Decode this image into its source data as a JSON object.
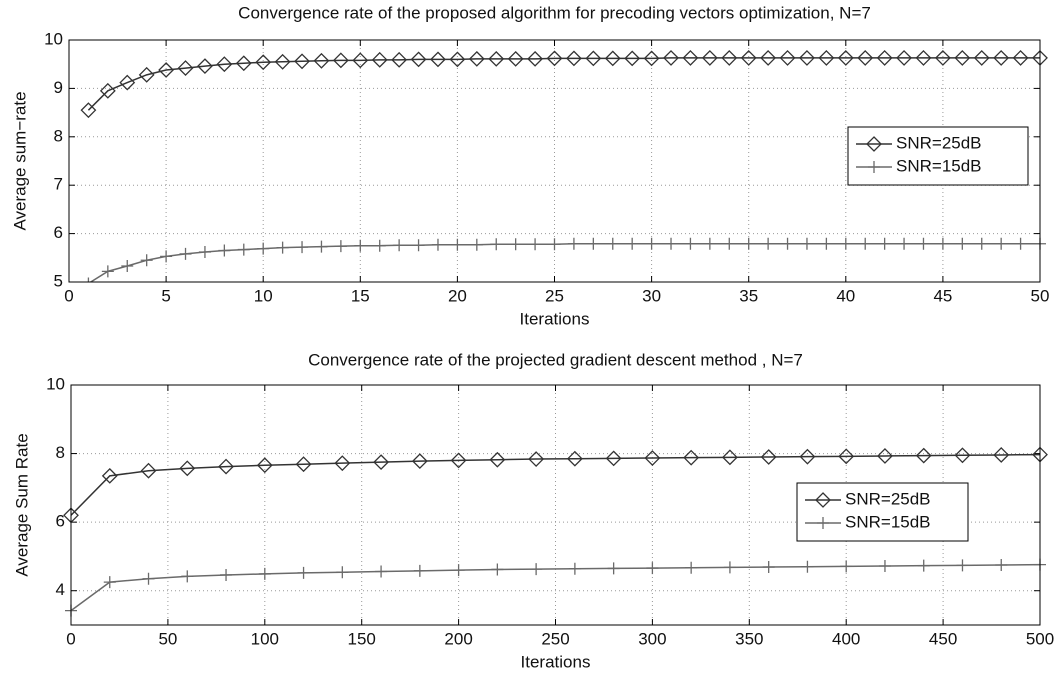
{
  "chart_data": [
    {
      "type": "line",
      "title": "Convergence rate of the proposed algorithm for precoding vectors optimization, N=7",
      "x_label": "Iterations",
      "y_label": "Average sum−rate",
      "x": [
        1,
        2,
        3,
        4,
        5,
        6,
        7,
        8,
        9,
        10,
        11,
        12,
        13,
        14,
        15,
        16,
        17,
        18,
        19,
        20,
        21,
        22,
        23,
        24,
        25,
        26,
        27,
        28,
        29,
        30,
        31,
        32,
        33,
        34,
        35,
        36,
        37,
        38,
        39,
        40,
        41,
        42,
        43,
        44,
        45,
        46,
        47,
        48,
        49,
        50
      ],
      "series": [
        {
          "name": "SNR=25dB",
          "color": "#333333",
          "marker": "diamond",
          "values": [
            8.55,
            8.95,
            9.12,
            9.28,
            9.38,
            9.42,
            9.46,
            9.5,
            9.52,
            9.54,
            9.55,
            9.56,
            9.57,
            9.58,
            9.58,
            9.59,
            9.59,
            9.6,
            9.6,
            9.6,
            9.61,
            9.61,
            9.61,
            9.61,
            9.62,
            9.62,
            9.62,
            9.62,
            9.62,
            9.62,
            9.63,
            9.63,
            9.63,
            9.63,
            9.63,
            9.63,
            9.63,
            9.63,
            9.63,
            9.63,
            9.63,
            9.63,
            9.63,
            9.63,
            9.63,
            9.63,
            9.63,
            9.63,
            9.63,
            9.63
          ]
        },
        {
          "name": "SNR=15dB",
          "color": "#6a6a6a",
          "marker": "plus",
          "values": [
            4.97,
            5.22,
            5.33,
            5.45,
            5.53,
            5.58,
            5.62,
            5.65,
            5.67,
            5.69,
            5.71,
            5.72,
            5.73,
            5.74,
            5.75,
            5.75,
            5.76,
            5.76,
            5.77,
            5.77,
            5.77,
            5.78,
            5.78,
            5.78,
            5.78,
            5.79,
            5.79,
            5.79,
            5.79,
            5.79,
            5.79,
            5.79,
            5.79,
            5.79,
            5.79,
            5.79,
            5.79,
            5.79,
            5.79,
            5.79,
            5.79,
            5.79,
            5.79,
            5.79,
            5.79,
            5.79,
            5.79,
            5.79,
            5.79,
            5.79
          ]
        }
      ],
      "xlim": [
        0,
        50
      ],
      "xticks": [
        0,
        5,
        10,
        15,
        20,
        25,
        30,
        35,
        40,
        45,
        50
      ],
      "ylim": [
        5,
        10
      ],
      "yticks": [
        5,
        6,
        7,
        8,
        9,
        10
      ],
      "grid": true,
      "legend": "right"
    },
    {
      "type": "line",
      "title": "Convergence rate of the projected gradient descent method , N=7",
      "x_label": "Iterations",
      "y_label": "Average Sum Rate",
      "x": [
        0,
        20,
        40,
        60,
        80,
        100,
        120,
        140,
        160,
        180,
        200,
        220,
        240,
        260,
        280,
        300,
        320,
        340,
        360,
        380,
        400,
        420,
        440,
        460,
        480,
        500
      ],
      "series": [
        {
          "name": "SNR=25dB",
          "color": "#333333",
          "marker": "diamond",
          "values": [
            6.2,
            7.35,
            7.5,
            7.57,
            7.62,
            7.66,
            7.69,
            7.72,
            7.75,
            7.78,
            7.8,
            7.82,
            7.84,
            7.85,
            7.86,
            7.87,
            7.88,
            7.89,
            7.9,
            7.91,
            7.92,
            7.93,
            7.94,
            7.95,
            7.96,
            7.97
          ]
        },
        {
          "name": "SNR=15dB",
          "color": "#6a6a6a",
          "marker": "plus",
          "values": [
            3.42,
            4.25,
            4.35,
            4.42,
            4.46,
            4.49,
            4.52,
            4.54,
            4.56,
            4.58,
            4.6,
            4.62,
            4.63,
            4.64,
            4.65,
            4.66,
            4.67,
            4.68,
            4.69,
            4.7,
            4.71,
            4.72,
            4.73,
            4.74,
            4.75,
            4.76
          ]
        }
      ],
      "xlim": [
        0,
        500
      ],
      "xticks": [
        0,
        50,
        100,
        150,
        200,
        250,
        300,
        350,
        400,
        450,
        500
      ],
      "ylim": [
        3,
        10
      ],
      "yticks": [
        4,
        6,
        8,
        10
      ],
      "grid": true,
      "legend": "right"
    }
  ]
}
